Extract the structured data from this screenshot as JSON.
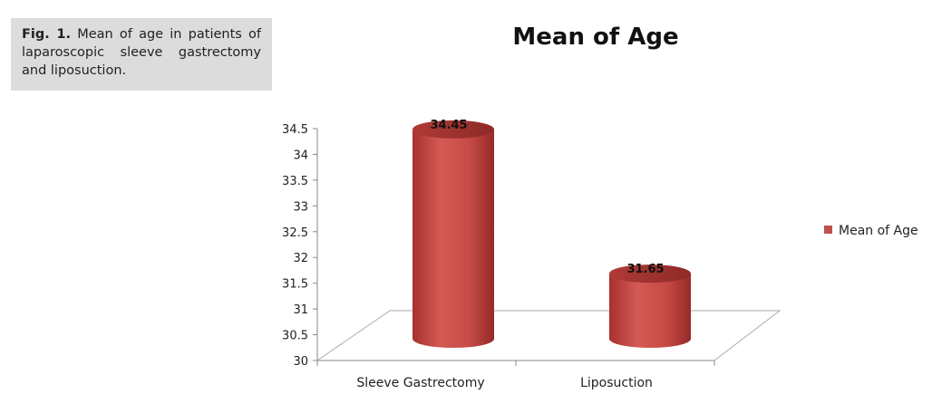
{
  "caption": {
    "label": "Fig. 1.",
    "text": "Mean of age in patients of laparoscopic sleeve gastrectomy and liposuction."
  },
  "chart_data": {
    "type": "bar",
    "title": "Mean of Age",
    "categories": [
      "Sleeve Gastrectomy",
      "Liposuction"
    ],
    "series": [
      {
        "name": "Mean of Age",
        "values": [
          34.45,
          31.65
        ],
        "color": "#c0504d"
      }
    ],
    "data_labels": [
      "34.45",
      "31.65"
    ],
    "ylim": [
      30,
      34.5
    ],
    "yticks": [
      "30",
      "30.5",
      "31",
      "31.5",
      "32",
      "32.5",
      "33",
      "33.5",
      "34",
      "34.5"
    ],
    "grid": false,
    "legend_position": "right",
    "style": "3d-cylinder"
  }
}
